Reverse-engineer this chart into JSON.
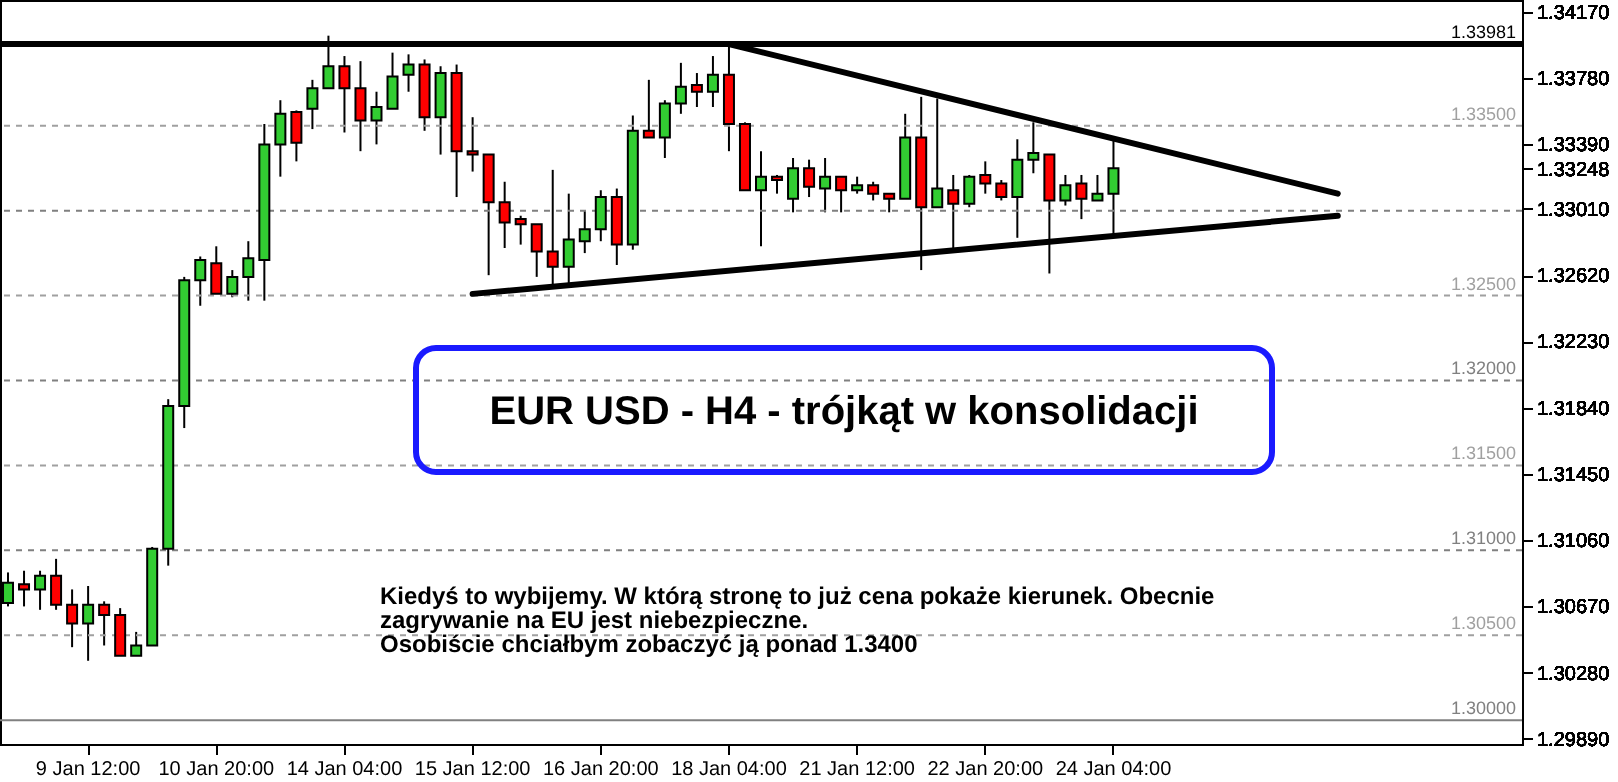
{
  "chart_data": {
    "type": "candlestick",
    "title": "EUR USD - H4 - trójkąt w konsolidacji",
    "annotations": [
      "Kiedyś to wybijemy. W którą stronę to już cena pokaże kierunek. Obecnie",
      "zagrywanie na EU jest niebezpieczne.",
      "Osobiście chciałbym zobaczyć ją ponad 1.3400"
    ],
    "categories": [
      null,
      null,
      null,
      null,
      null,
      "9 Jan 12:00",
      null,
      null,
      null,
      null,
      null,
      null,
      null,
      "10 Jan 20:00",
      null,
      null,
      null,
      null,
      null,
      null,
      null,
      "14 Jan 04:00",
      null,
      null,
      null,
      null,
      null,
      null,
      null,
      "15 Jan 12:00",
      null,
      null,
      null,
      null,
      null,
      null,
      null,
      "16 Jan 20:00",
      null,
      null,
      null,
      null,
      null,
      null,
      null,
      "18 Jan 04:00",
      null,
      null,
      null,
      null,
      null,
      null,
      null,
      "21 Jan 12:00",
      null,
      null,
      null,
      null,
      null,
      null,
      null,
      "22 Jan 20:00",
      null,
      null,
      null,
      null,
      null,
      null,
      null,
      "24 Jan 04:00",
      null,
      null,
      null,
      null,
      null,
      null,
      null,
      null,
      null,
      null,
      null,
      null,
      null,
      null,
      null,
      null,
      null,
      null,
      null,
      null,
      null,
      null,
      null,
      null,
      null
    ],
    "ohlc": [
      [
        1.3069,
        1.3087,
        1.3067,
        1.3081
      ],
      [
        1.308,
        1.3088,
        1.3067,
        1.3077
      ],
      [
        1.3077,
        1.3088,
        1.3065,
        1.3085
      ],
      [
        1.3085,
        1.3095,
        1.3065,
        1.3068
      ],
      [
        1.3068,
        1.3077,
        1.3043,
        1.3057
      ],
      [
        1.3057,
        1.3079,
        1.3035,
        1.3068
      ],
      [
        1.3068,
        1.307,
        1.3044,
        1.3062
      ],
      [
        1.3062,
        1.3066,
        1.3038,
        1.3038
      ],
      [
        1.3038,
        1.3052,
        1.3038,
        1.3044
      ],
      [
        1.3044,
        1.3102,
        1.3044,
        1.3101
      ],
      [
        1.3101,
        1.3189,
        1.3091,
        1.3185
      ],
      [
        1.3185,
        1.3261,
        1.3172,
        1.3259
      ],
      [
        1.3259,
        1.3273,
        1.3244,
        1.3271
      ],
      [
        1.3269,
        1.3279,
        1.3251,
        1.3251
      ],
      [
        1.3251,
        1.3265,
        1.3249,
        1.3261
      ],
      [
        1.3261,
        1.3282,
        1.3247,
        1.3272
      ],
      [
        1.3271,
        1.3351,
        1.3247,
        1.3339
      ],
      [
        1.3339,
        1.3365,
        1.332,
        1.3357
      ],
      [
        1.3358,
        1.3359,
        1.3329,
        1.334
      ],
      [
        1.336,
        1.3377,
        1.3348,
        1.3372
      ],
      [
        1.3372,
        1.3403,
        1.3372,
        1.3385
      ],
      [
        1.3385,
        1.3391,
        1.3346,
        1.3372
      ],
      [
        1.3372,
        1.3388,
        1.3335,
        1.3353
      ],
      [
        1.3353,
        1.337,
        1.3339,
        1.3361
      ],
      [
        1.336,
        1.3393,
        1.336,
        1.3379
      ],
      [
        1.338,
        1.3392,
        1.337,
        1.3386
      ],
      [
        1.3386,
        1.3389,
        1.3347,
        1.3355
      ],
      [
        1.3355,
        1.3385,
        1.3333,
        1.3381
      ],
      [
        1.3381,
        1.3386,
        1.3308,
        1.3335
      ],
      [
        1.3335,
        1.3355,
        1.3323,
        1.3333
      ],
      [
        1.3333,
        1.3333,
        1.3262,
        1.3305
      ],
      [
        1.3305,
        1.3317,
        1.3278,
        1.3293
      ],
      [
        1.3295,
        1.3297,
        1.328,
        1.3292
      ],
      [
        1.3292,
        1.3292,
        1.3261,
        1.3276
      ],
      [
        1.3276,
        1.3324,
        1.3256,
        1.3267
      ],
      [
        1.3267,
        1.331,
        1.3256,
        1.3283
      ],
      [
        1.3282,
        1.33,
        1.3275,
        1.3289
      ],
      [
        1.3289,
        1.3312,
        1.3282,
        1.3308
      ],
      [
        1.3308,
        1.3313,
        1.3268,
        1.328
      ],
      [
        1.328,
        1.3356,
        1.3277,
        1.3347
      ],
      [
        1.3347,
        1.3377,
        1.3343,
        1.3343
      ],
      [
        1.3343,
        1.3365,
        1.3331,
        1.3363
      ],
      [
        1.3363,
        1.3387,
        1.3357,
        1.3373
      ],
      [
        1.3374,
        1.3381,
        1.3361,
        1.337
      ],
      [
        1.337,
        1.3391,
        1.3361,
        1.338
      ],
      [
        1.338,
        1.3397,
        1.3335,
        1.3351
      ],
      [
        1.3351,
        1.3352,
        1.3312,
        1.3312
      ],
      [
        1.3312,
        1.3335,
        1.3279,
        1.332
      ],
      [
        1.332,
        1.3321,
        1.331,
        1.3318
      ],
      [
        1.3307,
        1.3331,
        1.3299,
        1.3325
      ],
      [
        1.3325,
        1.333,
        1.3308,
        1.3314
      ],
      [
        1.3313,
        1.3331,
        1.3299,
        1.332
      ],
      [
        1.332,
        1.332,
        1.3299,
        1.3312
      ],
      [
        1.3312,
        1.332,
        1.331,
        1.3315
      ],
      [
        1.3315,
        1.3317,
        1.3306,
        1.331
      ],
      [
        1.331,
        1.331,
        1.3299,
        1.3307
      ],
      [
        1.3307,
        1.3357,
        1.3307,
        1.3343
      ],
      [
        1.3343,
        1.3367,
        1.3265,
        1.3302
      ],
      [
        1.3302,
        1.3366,
        1.3302,
        1.3313
      ],
      [
        1.3312,
        1.3321,
        1.3276,
        1.3304
      ],
      [
        1.3304,
        1.3321,
        1.3302,
        1.332
      ],
      [
        1.3321,
        1.3329,
        1.331,
        1.3316
      ],
      [
        1.3316,
        1.3318,
        1.3306,
        1.3308
      ],
      [
        1.3308,
        1.3342,
        1.3284,
        1.333
      ],
      [
        1.333,
        1.3352,
        1.3322,
        1.3334
      ],
      [
        1.3333,
        1.3333,
        1.3263,
        1.3306
      ],
      [
        1.3306,
        1.3321,
        1.3303,
        1.3315
      ],
      [
        1.3316,
        1.3321,
        1.3295,
        1.3307
      ],
      [
        1.3306,
        1.3321,
        1.3306,
        1.331
      ],
      [
        1.331,
        1.3342,
        1.3285,
        1.3325
      ],
      null,
      null,
      null,
      null,
      null,
      null,
      null,
      null,
      null,
      null,
      null,
      null,
      null,
      null,
      null,
      null,
      null,
      null,
      null,
      null,
      null,
      null,
      null,
      null,
      null
    ],
    "colors": [
      "#32cd32",
      "#ff0000",
      "#32cd32",
      "#ff0000",
      "#ff0000",
      "#32cd32",
      "#ff0000",
      "#ff0000",
      "#32cd32",
      "#32cd32",
      "#32cd32",
      "#32cd32",
      "#32cd32",
      "#ff0000",
      "#32cd32",
      "#32cd32",
      "#32cd32",
      "#32cd32",
      "#ff0000",
      "#32cd32",
      "#32cd32",
      "#ff0000",
      "#ff0000",
      "#32cd32",
      "#32cd32",
      "#32cd32",
      "#ff0000",
      "#32cd32",
      "#ff0000",
      "#ff0000",
      "#ff0000",
      "#ff0000",
      "#ff0000",
      "#ff0000",
      "#ff0000",
      "#32cd32",
      "#32cd32",
      "#32cd32",
      "#ff0000",
      "#32cd32",
      "#ff0000",
      "#32cd32",
      "#32cd32",
      "#ff0000",
      "#32cd32",
      "#ff0000",
      "#ff0000",
      "#32cd32",
      "#ff0000",
      "#32cd32",
      "#ff0000",
      "#32cd32",
      "#ff0000",
      "#32cd32",
      "#ff0000",
      "#ff0000",
      "#32cd32",
      "#ff0000",
      "#32cd32",
      "#ff0000",
      "#32cd32",
      "#ff0000",
      "#ff0000",
      "#32cd32",
      "#32cd32",
      "#ff0000",
      "#32cd32",
      "#ff0000",
      "#32cd32",
      "#32cd32",
      null,
      null,
      null,
      null,
      null,
      null,
      null,
      null,
      null,
      null,
      null,
      null,
      null,
      null,
      null,
      null,
      null,
      null,
      null,
      null,
      null,
      null,
      null,
      null,
      null
    ],
    "series": [
      {
        "type": "line",
        "color": "#000000",
        "values": [
          null,
          null,
          null,
          null,
          null,
          null,
          null,
          null,
          null,
          null,
          null,
          null,
          null,
          null,
          null,
          null,
          null,
          null,
          null,
          null,
          null,
          null,
          null,
          null,
          null,
          null,
          null,
          null,
          null,
          null,
          null,
          null,
          null,
          null,
          null,
          null,
          null,
          null,
          null,
          null,
          null,
          null,
          null,
          null,
          null,
          1.3398,
          null,
          null,
          null,
          null,
          null,
          null,
          null,
          null,
          null,
          null,
          null,
          null,
          null,
          null,
          null,
          null,
          null,
          null,
          null,
          null,
          null,
          null,
          null,
          null,
          null,
          null,
          null,
          null,
          null,
          null,
          null,
          null,
          null,
          null,
          null,
          null,
          null,
          1.331,
          null,
          null,
          null,
          null,
          null,
          null,
          null,
          null,
          null,
          null,
          null
        ]
      },
      {
        "type": "line",
        "color": "#000000",
        "values": [
          null,
          null,
          null,
          null,
          null,
          null,
          null,
          null,
          null,
          null,
          null,
          null,
          null,
          null,
          null,
          null,
          null,
          null,
          null,
          null,
          null,
          null,
          null,
          null,
          null,
          null,
          null,
          null,
          null,
          1.3251,
          null,
          null,
          null,
          null,
          null,
          null,
          null,
          null,
          null,
          null,
          null,
          null,
          null,
          null,
          null,
          null,
          null,
          null,
          null,
          null,
          null,
          null,
          null,
          null,
          null,
          null,
          null,
          null,
          null,
          null,
          null,
          null,
          null,
          null,
          null,
          null,
          null,
          null,
          null,
          null,
          null,
          null,
          null,
          null,
          null,
          null,
          null,
          null,
          null,
          null,
          null,
          null,
          null,
          1.3297,
          null,
          null,
          null,
          null,
          null,
          null,
          null,
          null,
          null,
          null,
          null
        ]
      }
    ],
    "ylim": [
      1.2986,
      1.3424
    ],
    "yticks": [
      {
        "value": 1.3417,
        "label": "1.34170"
      },
      {
        "value": 1.3378,
        "label": "1.33780"
      },
      {
        "value": 1.3339,
        "label": "1.33390"
      },
      {
        "value": 1.33248,
        "label": "1.33248"
      },
      {
        "value": 1.3301,
        "label": "1.33010"
      },
      {
        "value": 1.3262,
        "label": "1.32620"
      },
      {
        "value": 1.3223,
        "label": "1.32230"
      },
      {
        "value": 1.3184,
        "label": "1.31840"
      },
      {
        "value": 1.3145,
        "label": "1.31450"
      },
      {
        "value": 1.3106,
        "label": "1.31060"
      },
      {
        "value": 1.3067,
        "label": "1.30670"
      },
      {
        "value": 1.3028,
        "label": "1.30280"
      },
      {
        "value": 1.2989,
        "label": "1.29890"
      }
    ],
    "ref_lines": [
      {
        "axis": "y",
        "value": 1.33981,
        "label": "1.33981",
        "color": "#000000",
        "line_style": "solid"
      },
      {
        "axis": "y",
        "value": 1.335,
        "label": "1.33500",
        "color": "#a0a0a0",
        "line_style": "dashed"
      },
      {
        "axis": "y",
        "value": 1.33,
        "label": null,
        "color": "#808080",
        "line_style": "dashed"
      },
      {
        "axis": "y",
        "value": 1.325,
        "label": "1.32500",
        "color": "#a0a0a0",
        "line_style": "dashed"
      },
      {
        "axis": "y",
        "value": 1.32,
        "label": "1.32000",
        "color": "#808080",
        "line_style": "dashed"
      },
      {
        "axis": "y",
        "value": 1.315,
        "label": "1.31500",
        "color": "#a0a0a0",
        "line_style": "dashed"
      },
      {
        "axis": "y",
        "value": 1.31,
        "label": "1.31000",
        "color": "#808080",
        "line_style": "dashed"
      },
      {
        "axis": "y",
        "value": 1.305,
        "label": "1.30500",
        "color": "#a0a0a0",
        "line_style": "dashed"
      },
      {
        "axis": "y",
        "value": 1.3,
        "label": "1.30000",
        "color": "#808080",
        "line_style": "solid"
      }
    ],
    "grid": false
  }
}
